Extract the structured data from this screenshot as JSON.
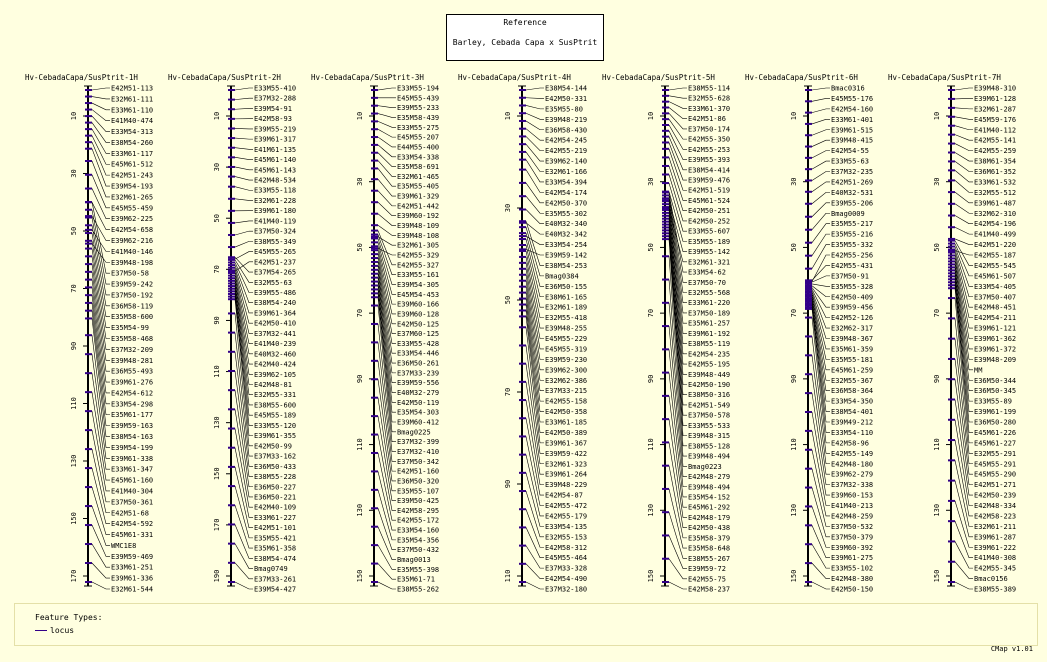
{
  "reference": {
    "title": "Reference",
    "subtitle": "Barley, Cebada Capa x SusPtrit"
  },
  "legend": {
    "title": "Feature Types:",
    "item": "locus",
    "color": "#330088"
  },
  "version": "CMap v1.01",
  "colors": {
    "background": "#ffffe0",
    "feature": "#330088",
    "axis": "#000000"
  },
  "maps": [
    {
      "title": "Hv-CebadaCapa/SusPtrit-1H",
      "ticks": [
        "10",
        "30",
        "50",
        "70",
        "90",
        "110",
        "130",
        "150",
        "170"
      ],
      "labels": [
        "E42M51-113",
        "E32M61-111",
        "E33M61-110",
        "E41M40-474",
        "E33M54-313",
        "E38M54-260",
        "E33M61-117",
        "E45M61-512",
        "E42M51-243",
        "E39M54-193",
        "E32M61-265",
        "E45M55-459",
        "E39M62-225",
        "E42M54-658",
        "E39M62-216",
        "E41M40-146",
        "E39M48-198",
        "E37M50-58",
        "E39M59-242",
        "E37M50-192",
        "E36M58-119",
        "E35M58-600",
        "E35M54-99",
        "E35M58-468",
        "E37M32-209",
        "E39M48-281",
        "E36M55-493",
        "E39M61-276",
        "E42M54-612",
        "E33M54-298",
        "E35M61-177",
        "E39M59-163",
        "E38M54-163",
        "E39M54-199",
        "E39M61-338",
        "E33M61-347",
        "E45M61-160",
        "E41M40-304",
        "E37M50-361",
        "E42M51-68",
        "E42M54-592",
        "E45M61-331",
        "WMC1E8",
        "E39M59-469",
        "E33M61-251",
        "E39M61-336",
        "E32M61-544"
      ]
    },
    {
      "title": "Hv-CebadaCapa/SusPtrit-2H",
      "ticks": [
        "10",
        "30",
        "50",
        "70",
        "90",
        "110",
        "130",
        "150",
        "170",
        "190"
      ],
      "labels": [
        "E33M55-410",
        "E37M32-288",
        "E39M54-91",
        "E42M58-93",
        "E39M55-219",
        "E39M61-317",
        "E41M61-135",
        "E45M61-140",
        "E45M61-143",
        "E42M48-534",
        "E33M55-118",
        "E32M61-228",
        "E39M61-180",
        "E41M40-119",
        "E37M50-324",
        "E38M55-349",
        "E45M55-265",
        "E42M51-237",
        "E37M54-265",
        "E32M55-63",
        "E39M55-486",
        "E38M54-240",
        "E39M61-364",
        "E42M50-410",
        "E37M32-441",
        "E41M40-239",
        "E40M32-460",
        "E42M40-424",
        "E39M62-105",
        "E42M48-81",
        "E32M55-331",
        "E38M55-600",
        "E45M55-189",
        "E33M55-120",
        "E39M61-355",
        "E42M50-99",
        "E37M33-162",
        "E36M50-433",
        "E38M55-228",
        "E36M50-227",
        "E36M50-221",
        "E42M40-109",
        "E33M61-227",
        "E42M51-101",
        "E35M55-421",
        "E35M61-358",
        "E38M54-474",
        "Bmag0749",
        "E37M33-261",
        "E39M54-427"
      ]
    },
    {
      "title": "Hv-CebadaCapa/SusPtrit-3H",
      "ticks": [
        "10",
        "30",
        "50",
        "70",
        "90",
        "110",
        "130",
        "150"
      ],
      "labels": [
        "E33M55-194",
        "E45M55-439",
        "E39M55-233",
        "E35M58-439",
        "E33M55-275",
        "E45M55-207",
        "E44M55-400",
        "E33M54-338",
        "E35M58-691",
        "E32M61-465",
        "E35M55-405",
        "E39M61-329",
        "E42M51-442",
        "E39M60-192",
        "E39M48-109",
        "E39M48-108",
        "E32M61-305",
        "E42M55-329",
        "E42M55-327",
        "E33M55-161",
        "E39M54-305",
        "E45M54-453",
        "E39M60-166",
        "E39M60-128",
        "E42M50-125",
        "E37M60-125",
        "E33M55-428",
        "E33M54-446",
        "E36M50-261",
        "E37M33-239",
        "E39M59-556",
        "E40M32-279",
        "E42M50-119",
        "E35M54-303",
        "E39M60-412",
        "Bmag0225",
        "E37M32-399",
        "E37M32-410",
        "E37M50-342",
        "E42M51-160",
        "E36M50-320",
        "E35M55-107",
        "E39M50-425",
        "E42M58-295",
        "E42M55-172",
        "E33M54-160",
        "E35M54-356",
        "E37M50-432",
        "Bmag0013",
        "E35M55-398",
        "E35M61-71",
        "E38M55-262"
      ]
    },
    {
      "title": "Hv-CebadaCapa/SusPtrit-4H",
      "ticks": [
        "10",
        "30",
        "50",
        "70",
        "90",
        "110"
      ],
      "labels": [
        "E38M54-144",
        "E42M50-331",
        "E35M55-80",
        "E39M48-219",
        "E36M58-430",
        "E42M54-245",
        "E42M55-219",
        "E39M62-140",
        "E32M61-166",
        "E33M54-394",
        "E42M54-174",
        "E42M50-370",
        "E35M55-302",
        "E40M32-340",
        "E40M32-342",
        "E33M54-254",
        "E39M59-142",
        "E38M54-253",
        "Bmag0384",
        "E36M50-155",
        "E38M61-165",
        "E32M61-189",
        "E32M55-418",
        "E39M48-255",
        "E45M55-229",
        "E45M55-319",
        "E39M59-230",
        "E39M62-300",
        "E32M62-386",
        "E37M33-215",
        "E42M55-158",
        "E42M50-358",
        "E33M61-185",
        "E42M50-389",
        "E39M61-367",
        "E39M59-422",
        "E32M61-323",
        "E39M61-264",
        "E39M48-229",
        "E42M54-87",
        "E42M55-472",
        "E42M55-179",
        "E33M54-135",
        "E32M55-153",
        "E42M58-312",
        "E45M55-464",
        "E37M33-328",
        "E42M54-490",
        "E37M32-180"
      ]
    },
    {
      "title": "Hv-CebadaCapa/SusPtrit-5H",
      "ticks": [
        "10",
        "30",
        "50",
        "70",
        "90",
        "110",
        "130",
        "150"
      ],
      "labels": [
        "E38M55-114",
        "E32M55-628",
        "E33M61-370",
        "E42M51-86",
        "E37M50-174",
        "E42M55-350",
        "E42M55-253",
        "E39M55-393",
        "E38M54-414",
        "E39M59-476",
        "E42M51-519",
        "E45M61-524",
        "E42M50-251",
        "E42M50-252",
        "E33M55-607",
        "E35M55-189",
        "E39M55-142",
        "E32M61-321",
        "E33M54-62",
        "E37M50-70",
        "E32M55-568",
        "E33M61-220",
        "E37M50-189",
        "E35M61-257",
        "E39M61-192",
        "E38M55-119",
        "E42M54-235",
        "E42M55-195",
        "E39M48-449",
        "E42M50-190",
        "E38M50-316",
        "E42M51-549",
        "E37M50-578",
        "E33M55-533",
        "E39M48-315",
        "E38M55-128",
        "E39M48-494",
        "Bmag0223",
        "E42M48-279",
        "E39M48-494",
        "E35M54-152",
        "E45M61-292",
        "E42M48-179",
        "E42M50-438",
        "E35M58-379",
        "E35M58-648",
        "E38M55-267",
        "E39M59-72",
        "E42M55-75",
        "E42M58-237"
      ]
    },
    {
      "title": "Hv-CebadaCapa/SusPtrit-6H",
      "ticks": [
        "10",
        "30",
        "50",
        "70",
        "90",
        "110",
        "130",
        "150"
      ],
      "labels": [
        "Bmac0316",
        "E45M55-176",
        "E42M54-160",
        "E33M61-401",
        "E39M61-515",
        "E39M48-415",
        "E42M54-55",
        "E33M55-63",
        "E37M32-235",
        "E42M51-269",
        "E40M32-531",
        "E39M55-206",
        "Bmag0009",
        "E35M55-217",
        "E35M55-216",
        "E35M55-332",
        "E42M55-256",
        "E42M55-431",
        "E37M50-91",
        "E35M55-328",
        "E42M50-409",
        "E39M59-456",
        "E42M52-126",
        "E32M62-317",
        "E39M48-367",
        "E35M61-359",
        "E35M55-181",
        "E45M61-259",
        "E32M55-367",
        "E36M58-364",
        "E33M54-350",
        "E38M54-401",
        "E39M49-212",
        "E33M54-110",
        "E42M58-96",
        "E42M55-149",
        "E42M48-180",
        "E39M62-279",
        "E37M32-338",
        "E39M60-153",
        "E41M40-213",
        "E42M48-259",
        "E37M50-532",
        "E37M50-379",
        "E39M60-392",
        "E39M61-275",
        "E33M55-102",
        "E42M48-380",
        "E42M50-150"
      ]
    },
    {
      "title": "Hv-CebadaCapa/SusPtrit-7H",
      "ticks": [
        "10",
        "30",
        "50",
        "70",
        "90",
        "110",
        "130",
        "150"
      ],
      "labels": [
        "E39M48-310",
        "E39M61-128",
        "E32M61-287",
        "E45M59-176",
        "E41M40-112",
        "E42M55-141",
        "E42M55-259",
        "E38M61-354",
        "E36M61-352",
        "E33M61-532",
        "E32M55-512",
        "E39M61-487",
        "E32M62-310",
        "E42M54-196",
        "E41M40-499",
        "E42M51-220",
        "E42M55-187",
        "E42M55-545",
        "E45M61-507",
        "E33M54-405",
        "E37M50-407",
        "E42M48-451",
        "E42M54-211",
        "E39M61-121",
        "E39M61-362",
        "E39M61-372",
        "E39M48-209",
        "MM",
        "E36M50-344",
        "E36M50-345",
        "E33M55-89",
        "E39M61-199",
        "E36M50-280",
        "E45M61-226",
        "E45M61-227",
        "E32M55-291",
        "E45M55-291",
        "E45M55-290",
        "E42M51-271",
        "E42M50-239",
        "E42M48-334",
        "E42M58-223",
        "E32M61-211",
        "E39M61-287",
        "E39M61-222",
        "E41M40-308",
        "E42M55-345",
        "Bmac0156",
        "E38M55-389"
      ]
    }
  ]
}
